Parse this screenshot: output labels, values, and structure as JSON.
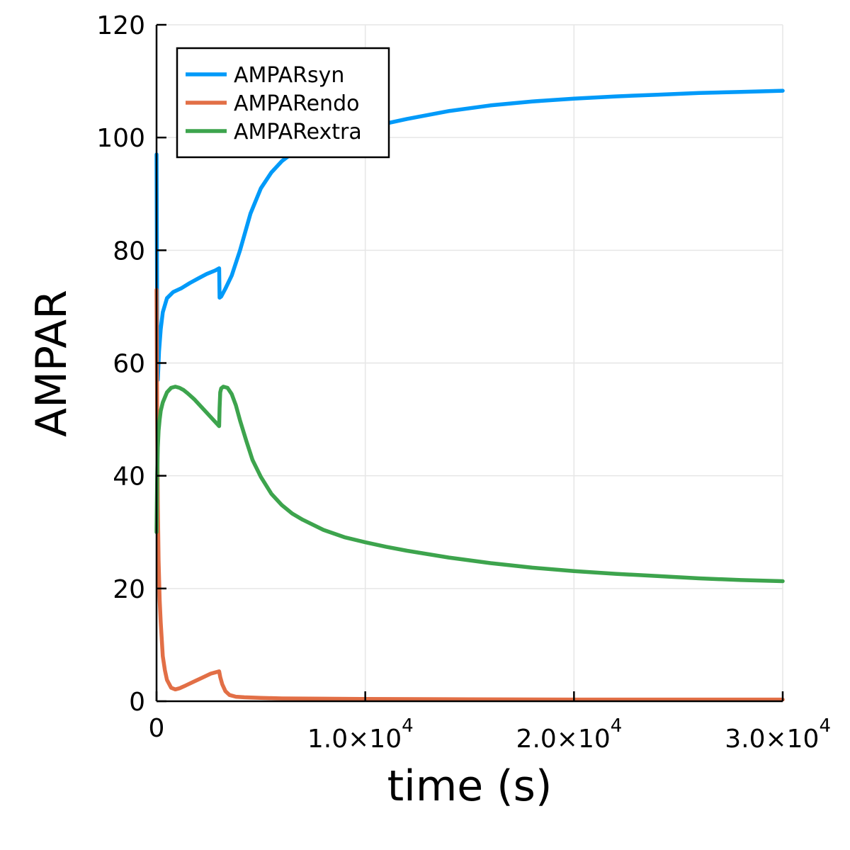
{
  "chart_data": {
    "type": "line",
    "title": "",
    "xlabel": "time (s)",
    "ylabel": "AMPAR",
    "xlim": [
      0,
      30000
    ],
    "ylim": [
      0,
      120
    ],
    "grid": true,
    "legend_position": "top-left",
    "x_ticks": [
      {
        "value": 0,
        "mantissa": "0",
        "exponent": ""
      },
      {
        "value": 10000,
        "mantissa": "1.0×10",
        "exponent": "4"
      },
      {
        "value": 20000,
        "mantissa": "2.0×10",
        "exponent": "4"
      },
      {
        "value": 30000,
        "mantissa": "3.0×10",
        "exponent": "4"
      }
    ],
    "y_ticks": [
      0,
      20,
      40,
      60,
      80,
      100,
      120
    ],
    "series": [
      {
        "name": "AMPARsyn",
        "color": "#009af9",
        "x": [
          0,
          30,
          60,
          120,
          200,
          300,
          500,
          800,
          1200,
          1600,
          2000,
          2400,
          2800,
          3000,
          3020,
          3100,
          3300,
          3600,
          4000,
          4500,
          5000,
          5500,
          6000,
          6500,
          7000,
          8000,
          9000,
          10000,
          11000,
          12000,
          14000,
          16000,
          18000,
          20000,
          22000,
          24000,
          26000,
          28000,
          30000
        ],
        "y": [
          97,
          67,
          57,
          62,
          66,
          69,
          71.5,
          72.6,
          73.3,
          74.2,
          75,
          75.8,
          76.4,
          76.8,
          71.6,
          71.8,
          73.2,
          75.5,
          80,
          86.5,
          91,
          93.8,
          95.8,
          97.2,
          98.3,
          99.8,
          100.8,
          101.6,
          102.5,
          103.3,
          104.7,
          105.7,
          106.4,
          106.9,
          107.3,
          107.6,
          107.9,
          108.1,
          108.3
        ]
      },
      {
        "name": "AMPARendo",
        "color": "#e26f46",
        "x": [
          0,
          30,
          60,
          100,
          150,
          200,
          300,
          400,
          500,
          700,
          900,
          1100,
          1400,
          1800,
          2200,
          2600,
          3000,
          3050,
          3150,
          3300,
          3500,
          3800,
          4200,
          5000,
          6000,
          8000,
          10000,
          15000,
          20000,
          25000,
          30000
        ],
        "y": [
          73,
          50,
          35,
          25,
          18,
          14,
          8,
          5.5,
          3.8,
          2.4,
          2.1,
          2.3,
          2.8,
          3.5,
          4.2,
          4.9,
          5.3,
          4.3,
          3,
          1.8,
          1.1,
          0.8,
          0.7,
          0.6,
          0.5,
          0.45,
          0.4,
          0.35,
          0.3,
          0.3,
          0.3
        ]
      },
      {
        "name": "AMPARextra",
        "color": "#3da44d",
        "x": [
          0,
          30,
          60,
          100,
          150,
          200,
          300,
          500,
          700,
          900,
          1100,
          1300,
          1500,
          1800,
          2100,
          2400,
          2700,
          3000,
          3020,
          3050,
          3100,
          3200,
          3400,
          3600,
          3800,
          4000,
          4300,
          4600,
          5000,
          5500,
          6000,
          6500,
          7000,
          8000,
          9000,
          10000,
          11000,
          12000,
          14000,
          16000,
          18000,
          20000,
          22000,
          24000,
          26000,
          28000,
          30000
        ],
        "y": [
          30,
          40,
          45,
          48,
          50,
          51.5,
          53,
          54.8,
          55.6,
          55.8,
          55.6,
          55.2,
          54.6,
          53.6,
          52.4,
          51.2,
          50,
          48.8,
          52,
          54.8,
          55.5,
          55.8,
          55.6,
          54.5,
          52.5,
          49.8,
          46.2,
          42.8,
          39.8,
          36.8,
          34.8,
          33.3,
          32.2,
          30.4,
          29.1,
          28.2,
          27.4,
          26.7,
          25.5,
          24.5,
          23.7,
          23.1,
          22.6,
          22.2,
          21.8,
          21.5,
          21.3
        ]
      }
    ]
  }
}
